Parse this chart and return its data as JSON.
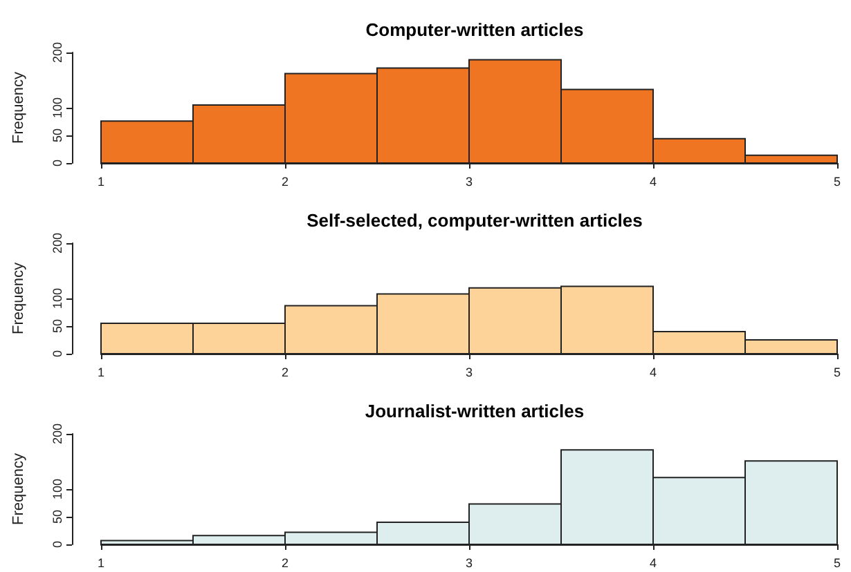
{
  "chart_data": [
    {
      "type": "histogram",
      "title": "Computer-written articles",
      "ylabel": "Frequency",
      "bins": [
        1,
        1.5,
        2,
        2.5,
        3,
        3.5,
        4,
        4.5,
        5
      ],
      "values": [
        76,
        105,
        162,
        172,
        187,
        133,
        44,
        14
      ],
      "color": "#f07522",
      "xlim": [
        1,
        5
      ],
      "xticks": [
        1,
        2,
        3,
        4,
        5
      ],
      "ylim": [
        0,
        200
      ],
      "yticks": [
        0,
        50,
        100,
        200
      ],
      "grid": false
    },
    {
      "type": "histogram",
      "title": "Self-selected, computer-written articles",
      "ylabel": "Frequency",
      "bins": [
        1,
        1.5,
        2,
        2.5,
        3,
        3.5,
        4,
        4.5,
        5
      ],
      "values": [
        55,
        55,
        87,
        108,
        119,
        122,
        40,
        25
      ],
      "color": "#fed39a",
      "xlim": [
        1,
        5
      ],
      "xticks": [
        1,
        2,
        3,
        4,
        5
      ],
      "ylim": [
        0,
        200
      ],
      "yticks": [
        0,
        50,
        100,
        200
      ],
      "grid": false
    },
    {
      "type": "histogram",
      "title": "Journalist-written articles",
      "ylabel": "Frequency",
      "bins": [
        1,
        1.5,
        2,
        2.5,
        3,
        3.5,
        4,
        4.5,
        5
      ],
      "values": [
        7,
        16,
        22,
        40,
        73,
        171,
        121,
        151
      ],
      "color": "#deeded",
      "xlim": [
        1,
        5
      ],
      "xticks": [
        1,
        2,
        3,
        4,
        5
      ],
      "ylim": [
        0,
        200
      ],
      "yticks": [
        0,
        50,
        100,
        200
      ],
      "grid": false
    }
  ]
}
